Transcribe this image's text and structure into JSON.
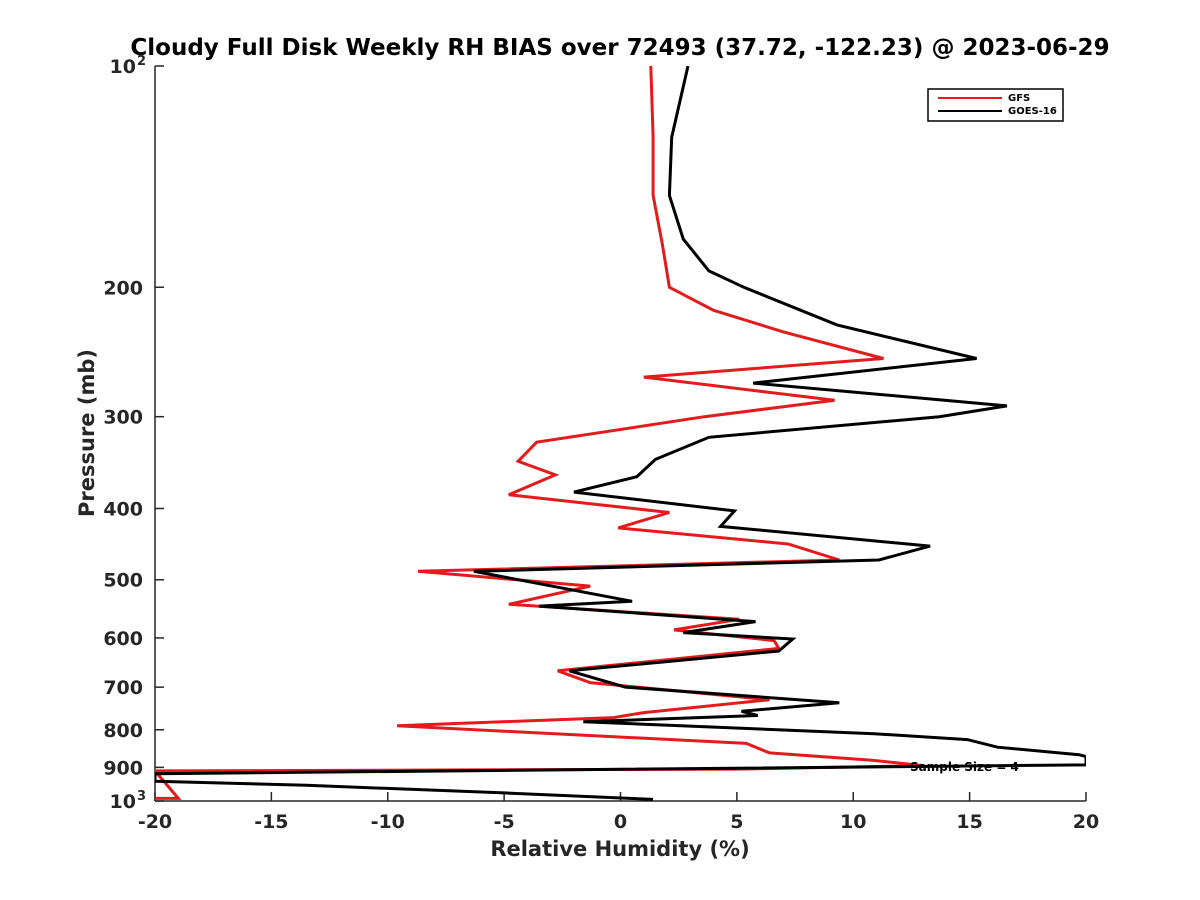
{
  "chart_data": {
    "type": "line",
    "title": "Cloudy Full Disk Weekly RH BIAS over 72493 (37.72, -122.23) @ 2023-06-29",
    "xlabel": "Relative Humidity (%)",
    "ylabel": "Pressure (mb)",
    "xlim": [
      -20,
      20
    ],
    "ylim": [
      100,
      1000
    ],
    "y_scale": "log",
    "y_reversed": true,
    "x_ticks": [
      -20,
      -15,
      -10,
      -5,
      0,
      5,
      10,
      15,
      20
    ],
    "x_tick_labels": [
      "-20",
      "-15",
      "-10",
      "-5",
      "0",
      "5",
      "10",
      "15",
      "20"
    ],
    "y_ticks": [
      {
        "value": 100,
        "base": "10",
        "exp": "2"
      },
      {
        "value": 200,
        "base": "200",
        "exp": ""
      },
      {
        "value": 300,
        "base": "300",
        "exp": ""
      },
      {
        "value": 400,
        "base": "400",
        "exp": ""
      },
      {
        "value": 500,
        "base": "500",
        "exp": ""
      },
      {
        "value": 600,
        "base": "600",
        "exp": ""
      },
      {
        "value": 700,
        "base": "700",
        "exp": ""
      },
      {
        "value": 800,
        "base": "800",
        "exp": ""
      },
      {
        "value": 900,
        "base": "900",
        "exp": ""
      },
      {
        "value": 1000,
        "base": "10",
        "exp": "3"
      }
    ],
    "grid": false,
    "legend_position": "top-right",
    "annotation": "Sample Size = 4",
    "series": [
      {
        "name": "GFS",
        "color": "#e41a1c",
        "points": [
          [
            1.3,
            100
          ],
          [
            1.4,
            125
          ],
          [
            1.4,
            150
          ],
          [
            1.8,
            175
          ],
          [
            2.1,
            200
          ],
          [
            4.0,
            215
          ],
          [
            7.0,
            230
          ],
          [
            11.3,
            250
          ],
          [
            1.0,
            265
          ],
          [
            9.2,
            285
          ],
          [
            3.6,
            300
          ],
          [
            -3.6,
            325
          ],
          [
            -4.4,
            345
          ],
          [
            -2.8,
            360
          ],
          [
            -4.8,
            383
          ],
          [
            2.1,
            405
          ],
          [
            -0.1,
            425
          ],
          [
            7.2,
            447
          ],
          [
            9.4,
            470
          ],
          [
            -8.7,
            487
          ],
          [
            -1.3,
            510
          ],
          [
            -4.8,
            540
          ],
          [
            5.1,
            566
          ],
          [
            2.3,
            585
          ],
          [
            6.6,
            605
          ],
          [
            6.8,
            620
          ],
          [
            -2.7,
            665
          ],
          [
            -1.3,
            690
          ],
          [
            6.4,
            728
          ],
          [
            1.0,
            758
          ],
          [
            -0.3,
            770
          ],
          [
            -9.6,
            790
          ],
          [
            5.4,
            835
          ],
          [
            6.4,
            860
          ],
          [
            10.8,
            880
          ],
          [
            13.0,
            895
          ],
          [
            5.0,
            905
          ],
          [
            -20.0,
            910
          ],
          [
            -19.0,
            992
          ],
          [
            -20.0,
            992
          ]
        ]
      },
      {
        "name": "GOES-16",
        "color": "#000000",
        "points": [
          [
            2.9,
            100
          ],
          [
            2.2,
            125
          ],
          [
            2.1,
            150
          ],
          [
            2.7,
            172
          ],
          [
            3.8,
            190
          ],
          [
            5.3,
            200
          ],
          [
            9.3,
            225
          ],
          [
            15.3,
            250
          ],
          [
            5.7,
            270
          ],
          [
            16.6,
            290
          ],
          [
            13.7,
            300
          ],
          [
            3.8,
            320
          ],
          [
            1.5,
            343
          ],
          [
            0.7,
            362
          ],
          [
            -2.0,
            380
          ],
          [
            4.9,
            403
          ],
          [
            4.3,
            423
          ],
          [
            13.3,
            450
          ],
          [
            11.1,
            470
          ],
          [
            -6.3,
            487
          ],
          [
            0.5,
            535
          ],
          [
            -3.5,
            543
          ],
          [
            5.8,
            570
          ],
          [
            2.7,
            590
          ],
          [
            7.4,
            602
          ],
          [
            6.8,
            625
          ],
          [
            -2.2,
            665
          ],
          [
            0.2,
            700
          ],
          [
            9.4,
            735
          ],
          [
            5.2,
            755
          ],
          [
            5.9,
            765
          ],
          [
            -1.6,
            780
          ],
          [
            10.9,
            810
          ],
          [
            14.9,
            825
          ],
          [
            16.2,
            845
          ],
          [
            19.7,
            865
          ],
          [
            20.0,
            870
          ],
          [
            20.0,
            893
          ],
          [
            -20.0,
            918
          ],
          [
            -20.0,
            940
          ],
          [
            -13.5,
            952
          ],
          [
            -5.0,
            975
          ],
          [
            1.4,
            995
          ]
        ]
      }
    ]
  }
}
